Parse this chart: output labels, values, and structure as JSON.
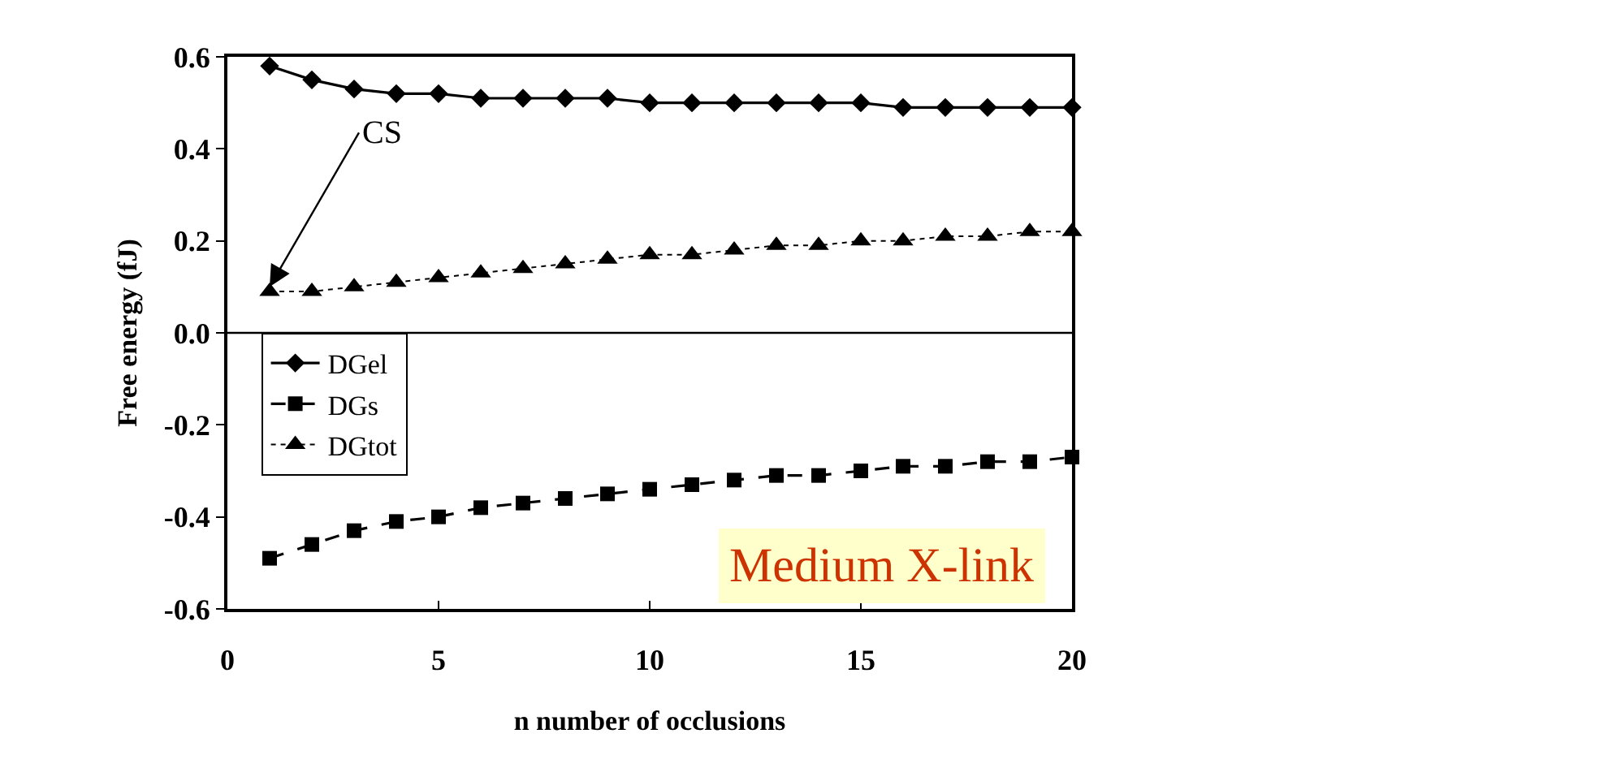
{
  "chart_data": {
    "type": "line",
    "xlabel": "n number of occlusions",
    "ylabel": "Free energy (fJ)",
    "x": [
      1,
      2,
      3,
      4,
      5,
      6,
      7,
      8,
      9,
      10,
      11,
      12,
      13,
      14,
      15,
      16,
      17,
      18,
      19,
      20
    ],
    "series": [
      {
        "name": "DGel",
        "color": "#000000",
        "marker": "diamond",
        "line_style": "solid",
        "values": [
          0.58,
          0.55,
          0.53,
          0.52,
          0.52,
          0.51,
          0.51,
          0.51,
          0.51,
          0.5,
          0.5,
          0.5,
          0.5,
          0.5,
          0.5,
          0.49,
          0.49,
          0.49,
          0.49,
          0.49
        ]
      },
      {
        "name": "DGs",
        "color": "#000000",
        "marker": "square",
        "line_style": "dashed",
        "values": [
          -0.49,
          -0.46,
          -0.43,
          -0.41,
          -0.4,
          -0.38,
          -0.37,
          -0.36,
          -0.35,
          -0.34,
          -0.33,
          -0.32,
          -0.31,
          -0.31,
          -0.3,
          -0.29,
          -0.29,
          -0.28,
          -0.28,
          -0.27
        ]
      },
      {
        "name": "DGtot",
        "color": "#000000",
        "marker": "triangle",
        "line_style": "dotted",
        "values": [
          0.09,
          0.09,
          0.1,
          0.11,
          0.12,
          0.13,
          0.14,
          0.15,
          0.16,
          0.17,
          0.17,
          0.18,
          0.19,
          0.19,
          0.2,
          0.2,
          0.21,
          0.21,
          0.22,
          0.22
        ]
      }
    ],
    "xlim": [
      0,
      20
    ],
    "xticks": [
      0,
      5,
      10,
      15,
      20
    ],
    "ylim": [
      -0.6,
      0.6
    ],
    "yticks": [
      {
        "value": 0.6,
        "label": "0.6"
      },
      {
        "value": 0.4,
        "label": "0.4"
      },
      {
        "value": 0.2,
        "label": "0.2"
      },
      {
        "value": 0,
        "label": "0.0"
      },
      {
        "value": -0.2,
        "label": "-0.2"
      },
      {
        "value": -0.4,
        "label": "-0.4"
      },
      {
        "value": -0.6,
        "label": "-0.6"
      }
    ],
    "ref_lines": [
      {
        "axis": "y",
        "value": 0,
        "color": "#000000",
        "line_style": "solid"
      }
    ],
    "annotations": [
      {
        "text": "CS",
        "x": 1,
        "y": 0.1
      },
      "Medium X-link"
    ],
    "grid": false,
    "legend": "left"
  }
}
